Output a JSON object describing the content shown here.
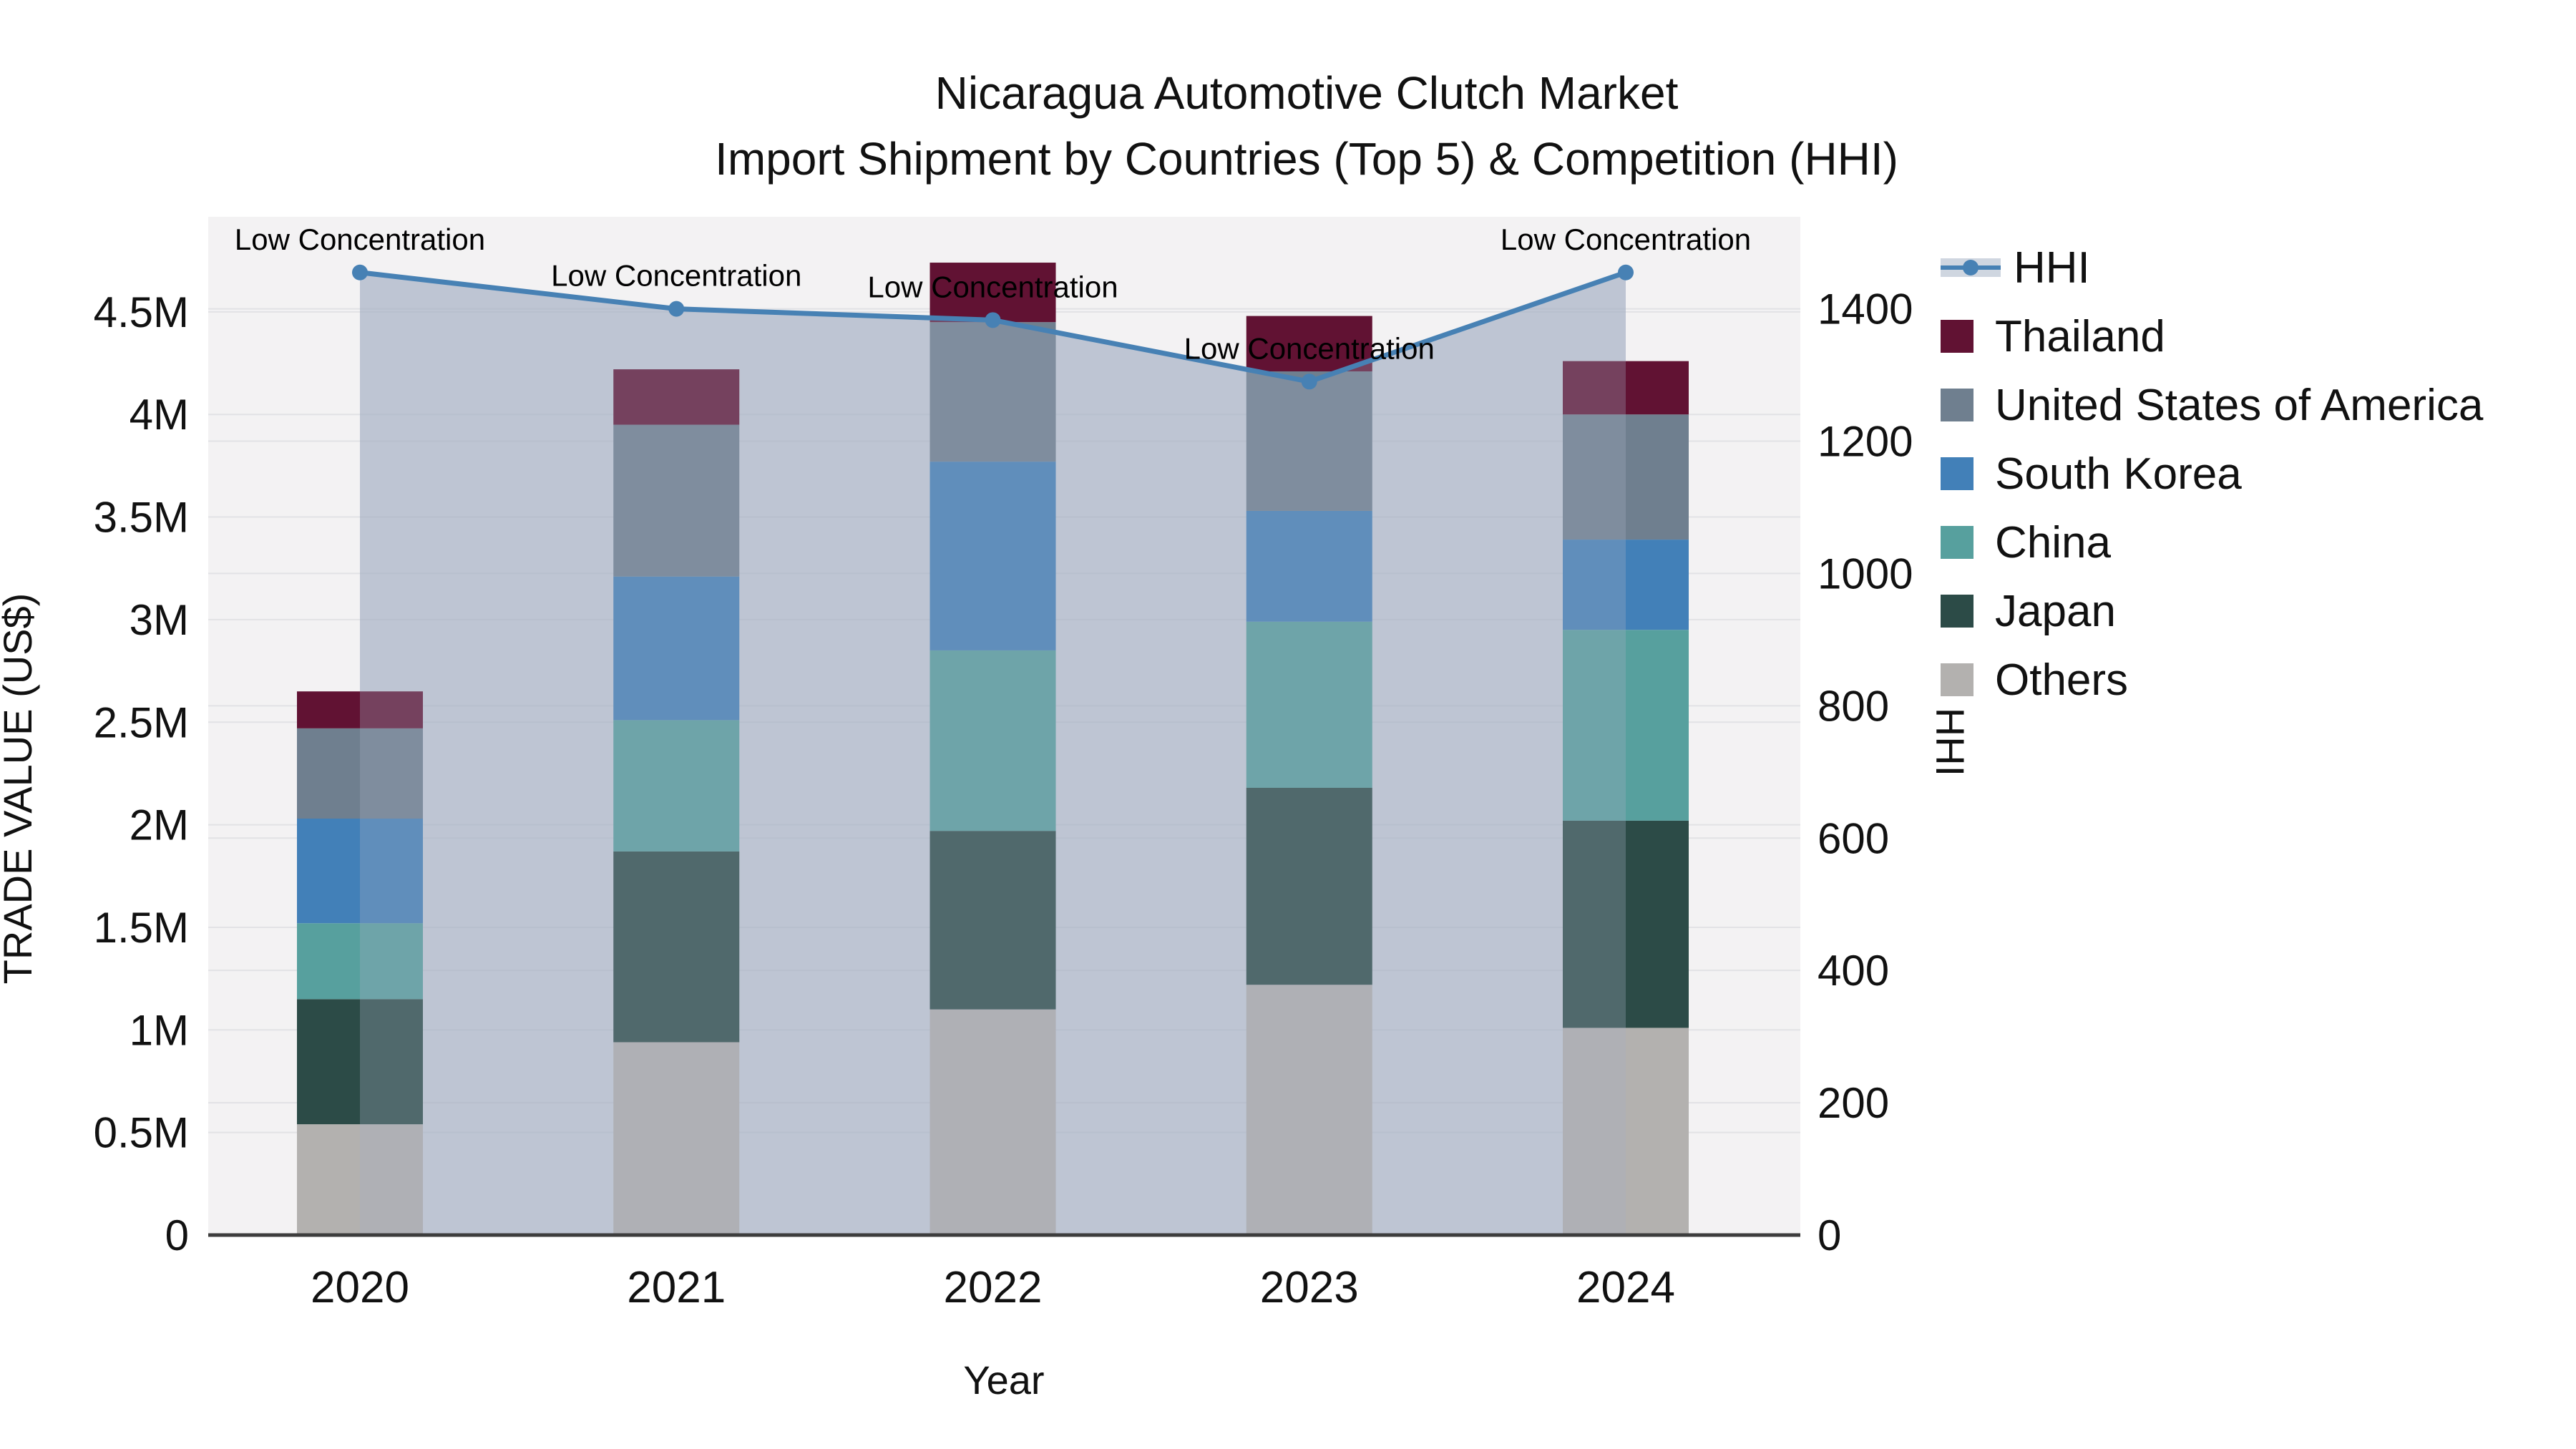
{
  "title": {
    "line1": "Nicaragua Automotive Clutch Market",
    "line2": "Import Shipment by Countries (Top 5) & Competition (HHI)"
  },
  "axes": {
    "x": {
      "label": "Year",
      "ticks": [
        "2020",
        "2021",
        "2022",
        "2023",
        "2024"
      ]
    },
    "y_left": {
      "label": "TRADE VALUE (US$)",
      "ticks": [
        "0",
        "0.5M",
        "1M",
        "1.5M",
        "2M",
        "2.5M",
        "3M",
        "3.5M",
        "4M",
        "4.5M"
      ]
    },
    "y_right": {
      "label": "HHI",
      "ticks": [
        "0",
        "200",
        "400",
        "600",
        "800",
        "1000",
        "1200",
        "1400"
      ]
    }
  },
  "legend": {
    "items": [
      {
        "id": "hhi",
        "label": "HHI",
        "type": "line",
        "color": "#4781B4"
      },
      {
        "id": "thailand",
        "label": "Thailand",
        "type": "square",
        "color": "#611233"
      },
      {
        "id": "usa",
        "label": "United States of America",
        "type": "square",
        "color": "#6F7F8F"
      },
      {
        "id": "south-korea",
        "label": "South Korea",
        "type": "square",
        "color": "#4280B8"
      },
      {
        "id": "china",
        "label": "China",
        "type": "square",
        "color": "#57A09E"
      },
      {
        "id": "japan",
        "label": "Japan",
        "type": "square",
        "color": "#2C4B47"
      },
      {
        "id": "others",
        "label": "Others",
        "type": "square",
        "color": "#B3B1AF"
      }
    ]
  },
  "chart_data": [
    {
      "type": "bar",
      "stacked": true,
      "title": "Import shipment trade value by country (stacked, US$ millions)",
      "categories": [
        "2020",
        "2021",
        "2022",
        "2023",
        "2024"
      ],
      "unit": "US$ millions",
      "xlabel": "Year",
      "ylabel": "TRADE VALUE (US$)",
      "ylim": [
        0,
        4.96
      ],
      "grid": true,
      "series": [
        {
          "name": "Others",
          "color": "#B3B1AF",
          "values": [
            0.54,
            0.94,
            1.1,
            1.22,
            1.01
          ]
        },
        {
          "name": "Japan",
          "color": "#2C4B47",
          "values": [
            0.61,
            0.93,
            0.87,
            0.96,
            1.01
          ]
        },
        {
          "name": "China",
          "color": "#57A09E",
          "values": [
            0.37,
            0.64,
            0.88,
            0.81,
            0.93
          ]
        },
        {
          "name": "South Korea",
          "color": "#4280B8",
          "values": [
            0.51,
            0.7,
            0.92,
            0.54,
            0.44
          ]
        },
        {
          "name": "United States of America",
          "color": "#6F7F8F",
          "values": [
            0.44,
            0.74,
            0.68,
            0.68,
            0.61
          ]
        },
        {
          "name": "Thailand",
          "color": "#611233",
          "values": [
            0.18,
            0.27,
            0.29,
            0.27,
            0.26
          ]
        }
      ],
      "totals": [
        2.65,
        4.22,
        4.74,
        4.48,
        4.26
      ]
    },
    {
      "type": "line",
      "name": "HHI",
      "color": "#4781B4",
      "x": [
        "2020",
        "2021",
        "2022",
        "2023",
        "2024"
      ],
      "values": [
        1455,
        1400,
        1383,
        1290,
        1455
      ],
      "point_labels": [
        "Low Concentration",
        "Low Concentration",
        "Low Concentration",
        "Low Concentration",
        "Low Concentration"
      ],
      "area_fill": true,
      "ylabel": "HHI",
      "ylim": [
        0,
        1539
      ],
      "legend_position": "right"
    }
  ],
  "colors": {
    "hhi_line": "#4781B4",
    "area_fill": "#A5B1C4",
    "plot_background": "#F3F2F3",
    "figure_background": "#FFFFFF",
    "gridline": "#E2E2E5",
    "axis_line": "#3D3D3D",
    "text": "#111111"
  }
}
